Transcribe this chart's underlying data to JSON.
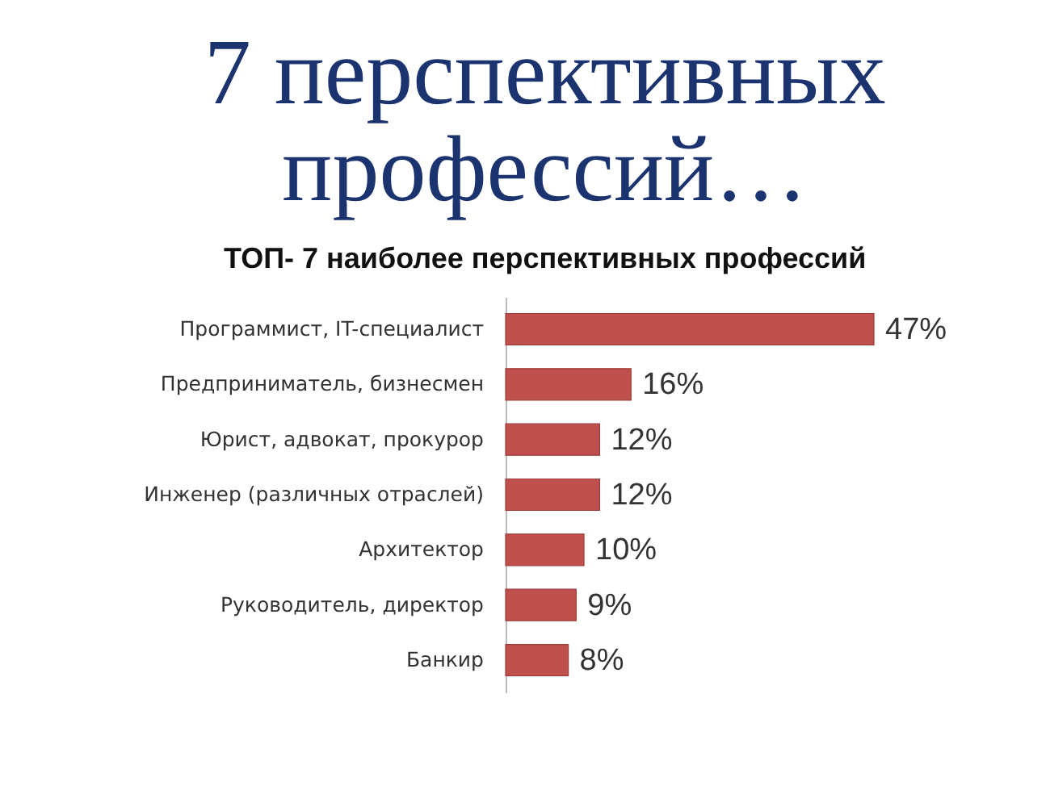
{
  "chart_data": {
    "type": "bar",
    "orientation": "horizontal",
    "title": "7 перспективных профессий…",
    "subtitle": "ТОП- 7 наиболее перспективных профессий",
    "categories": [
      "Программист, IT-специалист",
      "Предприниматель, бизнесмен",
      "Юрист, адвокат, прокурор",
      "Инженер (различных отраслей)",
      "Архитектор",
      "Руководитель, директор",
      "Банкир"
    ],
    "values": [
      47,
      16,
      12,
      12,
      10,
      9,
      8
    ],
    "value_labels": [
      "47%",
      "16%",
      "12%",
      "12%",
      "10%",
      "9%",
      "8%"
    ],
    "color": "#c0504d"
  }
}
